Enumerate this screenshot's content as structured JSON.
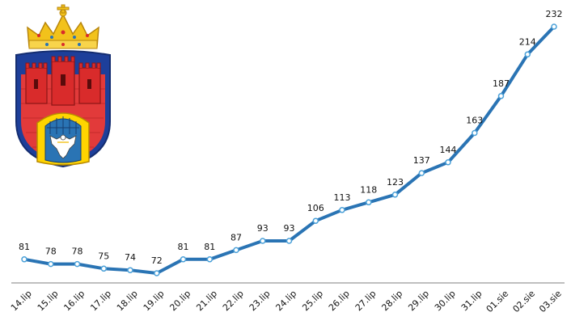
{
  "chart_data": {
    "type": "line",
    "categories": [
      "14.lip",
      "15.lip",
      "16.lip",
      "17.lip",
      "18.lip",
      "19.lip",
      "20.lip",
      "21.lip",
      "22.lip",
      "23.lip",
      "24.lip",
      "25.lip",
      "26.lip",
      "27.lip",
      "28.lip",
      "29.lip",
      "30.lip",
      "31.lip",
      "01.sie",
      "02.sie",
      "03.sie"
    ],
    "series": [
      {
        "values": [
          81,
          78,
          78,
          75,
          74,
          72,
          81,
          81,
          87,
          93,
          93,
          106,
          113,
          118,
          123,
          137,
          144,
          163,
          187,
          214,
          232
        ]
      }
    ],
    "title": "",
    "xlabel": "",
    "ylabel": "",
    "ylim": [
      60,
      240
    ],
    "grid": false,
    "legend": "none",
    "data_labels": true,
    "x_tick_rotation_deg": -45,
    "colors": {
      "line": "#2a74b4",
      "marker_fill": "#ffffff",
      "marker_stroke": "#4aa0d8",
      "axis": "#7f7f7f"
    }
  },
  "logo": {
    "icon": "krakow-coat-of-arms-icon",
    "colors": {
      "shield": "#e23a3a",
      "shield_border": "#1d3f9a",
      "crown": "#f2c21b",
      "tower": "#d92b2b",
      "gate": "#ffd400",
      "eagle": "#ffffff"
    }
  }
}
